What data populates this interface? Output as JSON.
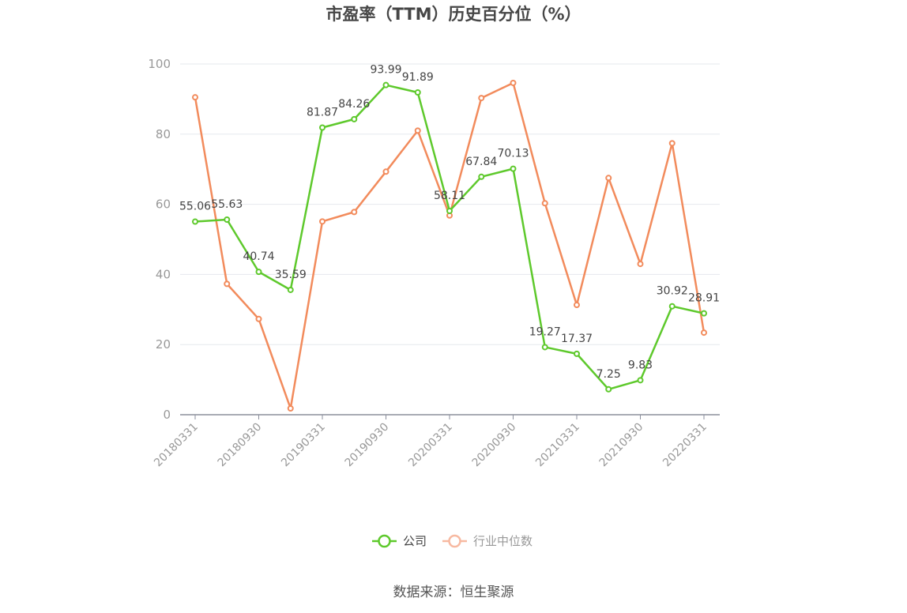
{
  "chart_data": {
    "type": "line",
    "title": "市盈率（TTM）历史百分位（%）",
    "xlabel": "",
    "ylabel": "",
    "ylim": [
      0,
      100
    ],
    "yticks": [
      0,
      20,
      40,
      60,
      80,
      100
    ],
    "x": [
      "20180331",
      "20180630",
      "20180930",
      "20181231",
      "20190331",
      "20190630",
      "20190930",
      "20191231",
      "20200331",
      "20200630",
      "20200930",
      "20201231",
      "20210331",
      "20210630",
      "20210930",
      "20211231",
      "20220331"
    ],
    "xtick_labels": [
      "20180331",
      "20180930",
      "20190331",
      "20190930",
      "20200331",
      "20200930",
      "20210331",
      "20210930",
      "20220331"
    ],
    "grid": true,
    "legend_position": "bottom",
    "series": [
      {
        "name": "公司",
        "color": "#5ec92c",
        "values": [
          55.06,
          55.63,
          40.74,
          35.59,
          81.87,
          84.26,
          93.99,
          91.89,
          58.11,
          67.84,
          70.13,
          19.27,
          17.37,
          7.25,
          9.83,
          30.92,
          28.91
        ],
        "labels": [
          "55.06",
          "55.63",
          "40.74",
          "35.59",
          "81.87",
          "84.26",
          "93.99",
          "91.89",
          "58.11",
          "67.84",
          "70.13",
          "19.27",
          "17.37",
          "7.25",
          "9.83",
          "30.92",
          "28.91"
        ]
      },
      {
        "name": "行业中位数",
        "color": "#f28b5c",
        "values": [
          90.5,
          37.3,
          27.3,
          1.8,
          55.1,
          57.8,
          69.3,
          81.0,
          56.8,
          90.3,
          94.6,
          60.3,
          31.3,
          67.5,
          43.0,
          77.4,
          23.4
        ]
      }
    ]
  },
  "source": "数据来源：恒生聚源"
}
